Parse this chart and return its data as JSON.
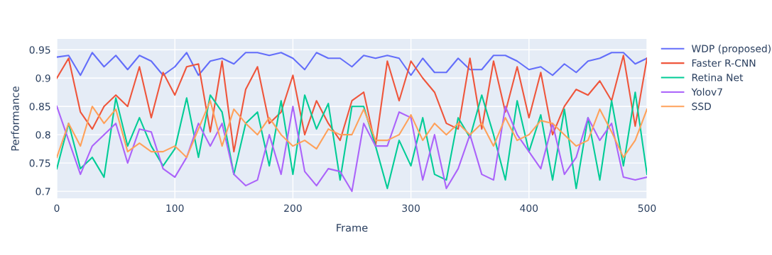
{
  "chart_data": {
    "type": "line",
    "xlabel": "Frame",
    "ylabel": "Performance",
    "x": [
      0,
      10,
      20,
      30,
      40,
      50,
      60,
      70,
      80,
      90,
      100,
      110,
      120,
      130,
      140,
      150,
      160,
      170,
      180,
      190,
      200,
      210,
      220,
      230,
      240,
      250,
      260,
      270,
      280,
      290,
      300,
      310,
      320,
      330,
      340,
      350,
      360,
      370,
      380,
      390,
      400,
      410,
      420,
      430,
      440,
      450,
      460,
      470,
      480,
      490,
      500
    ],
    "series": [
      {
        "name": "WDP (proposed)",
        "color": "#636efa",
        "values": [
          0.937,
          0.94,
          0.905,
          0.945,
          0.92,
          0.94,
          0.915,
          0.94,
          0.93,
          0.905,
          0.92,
          0.945,
          0.905,
          0.93,
          0.935,
          0.925,
          0.945,
          0.945,
          0.94,
          0.945,
          0.935,
          0.915,
          0.945,
          0.935,
          0.935,
          0.92,
          0.94,
          0.935,
          0.94,
          0.935,
          0.905,
          0.935,
          0.91,
          0.91,
          0.935,
          0.915,
          0.915,
          0.94,
          0.94,
          0.93,
          0.915,
          0.92,
          0.905,
          0.925,
          0.91,
          0.93,
          0.935,
          0.945,
          0.945,
          0.925,
          0.935
        ]
      },
      {
        "name": "Faster R-CNN",
        "color": "#ef553b",
        "values": [
          0.9,
          0.935,
          0.84,
          0.81,
          0.85,
          0.87,
          0.85,
          0.92,
          0.83,
          0.91,
          0.87,
          0.92,
          0.925,
          0.805,
          0.93,
          0.77,
          0.88,
          0.92,
          0.82,
          0.84,
          0.905,
          0.8,
          0.86,
          0.82,
          0.79,
          0.86,
          0.875,
          0.78,
          0.93,
          0.86,
          0.93,
          0.9,
          0.875,
          0.82,
          0.81,
          0.935,
          0.81,
          0.93,
          0.84,
          0.92,
          0.83,
          0.91,
          0.8,
          0.85,
          0.88,
          0.87,
          0.895,
          0.86,
          0.94,
          0.815,
          0.935
        ]
      },
      {
        "name": "Retina Net",
        "color": "#00cc96",
        "values": [
          0.74,
          0.82,
          0.74,
          0.76,
          0.725,
          0.865,
          0.78,
          0.83,
          0.78,
          0.745,
          0.775,
          0.865,
          0.76,
          0.87,
          0.84,
          0.73,
          0.82,
          0.84,
          0.745,
          0.86,
          0.73,
          0.87,
          0.81,
          0.855,
          0.72,
          0.85,
          0.85,
          0.78,
          0.705,
          0.79,
          0.745,
          0.83,
          0.73,
          0.72,
          0.83,
          0.795,
          0.87,
          0.8,
          0.72,
          0.86,
          0.77,
          0.835,
          0.72,
          0.845,
          0.705,
          0.83,
          0.72,
          0.86,
          0.745,
          0.875,
          0.73
        ]
      },
      {
        "name": "Yolov7",
        "color": "#ab63fa",
        "values": [
          0.85,
          0.79,
          0.73,
          0.78,
          0.8,
          0.82,
          0.75,
          0.81,
          0.805,
          0.74,
          0.725,
          0.76,
          0.82,
          0.78,
          0.82,
          0.73,
          0.71,
          0.72,
          0.8,
          0.73,
          0.85,
          0.735,
          0.71,
          0.74,
          0.735,
          0.7,
          0.82,
          0.78,
          0.78,
          0.84,
          0.83,
          0.72,
          0.8,
          0.705,
          0.74,
          0.8,
          0.73,
          0.72,
          0.85,
          0.8,
          0.77,
          0.74,
          0.82,
          0.73,
          0.76,
          0.83,
          0.79,
          0.82,
          0.725,
          0.72,
          0.725
        ]
      },
      {
        "name": "SSD",
        "color": "#ffa15a",
        "values": [
          0.76,
          0.82,
          0.78,
          0.85,
          0.82,
          0.845,
          0.77,
          0.785,
          0.77,
          0.77,
          0.78,
          0.76,
          0.81,
          0.86,
          0.78,
          0.845,
          0.82,
          0.8,
          0.83,
          0.8,
          0.78,
          0.79,
          0.775,
          0.81,
          0.8,
          0.8,
          0.845,
          0.79,
          0.79,
          0.8,
          0.835,
          0.79,
          0.82,
          0.8,
          0.82,
          0.8,
          0.82,
          0.78,
          0.83,
          0.79,
          0.8,
          0.825,
          0.82,
          0.8,
          0.78,
          0.79,
          0.845,
          0.805,
          0.76,
          0.79,
          0.845
        ]
      }
    ],
    "xlim": [
      0,
      500
    ],
    "xticks": [
      0,
      100,
      200,
      300,
      400,
      500
    ],
    "ylim": [
      0.6875,
      0.969
    ],
    "yticks": [
      0.7,
      0.75,
      0.8,
      0.85,
      0.9,
      0.95
    ],
    "grid": true,
    "legend": "top right",
    "marker": "none",
    "line_style": "solid"
  }
}
